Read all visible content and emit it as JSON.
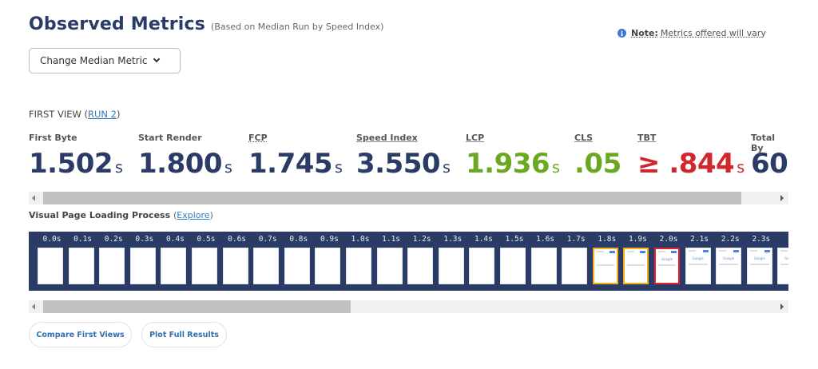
{
  "header": {
    "title": "Observed Metrics",
    "subtitle": "(Based on Median Run by Speed Index)",
    "note_label": "Note:",
    "note_text": "Metrics offered will vary",
    "note_icon": "info-icon",
    "median_button_label": "Change Median Metric"
  },
  "first_view": {
    "prefix": "FIRST VIEW (",
    "run_link": "RUN 2",
    "suffix": ")"
  },
  "metrics": [
    {
      "label": "First Byte",
      "value": "1.502",
      "unit": "s",
      "color": "#2a3c66"
    },
    {
      "label": "Start Render",
      "value": "1.800",
      "unit": "s",
      "color": "#2a3c66"
    },
    {
      "label": "FCP",
      "value": "1.745",
      "unit": "s",
      "color": "#2a3c66"
    },
    {
      "label": "Speed Index",
      "value": "3.550",
      "unit": "s",
      "color": "#2a3c66"
    },
    {
      "label": "LCP",
      "value": "1.936",
      "unit": "s",
      "color": "#6aa820"
    },
    {
      "label": "CLS",
      "value": ".05",
      "unit": "",
      "color": "#6aa820"
    },
    {
      "label": "TBT",
      "value": "≥ .844",
      "unit": "s",
      "color": "#d1262b"
    },
    {
      "label": "Total By",
      "value": "60",
      "unit": "",
      "color": "#2a3c66"
    }
  ],
  "visual_progress": {
    "title": "Visual Page Loading Process",
    "link": "Explore",
    "frames": [
      {
        "time": "0.0s",
        "state": "blank"
      },
      {
        "time": "0.1s",
        "state": "blank"
      },
      {
        "time": "0.2s",
        "state": "blank"
      },
      {
        "time": "0.3s",
        "state": "blank"
      },
      {
        "time": "0.4s",
        "state": "blank"
      },
      {
        "time": "0.5s",
        "state": "blank"
      },
      {
        "time": "0.6s",
        "state": "blank"
      },
      {
        "time": "0.7s",
        "state": "blank"
      },
      {
        "time": "0.8s",
        "state": "blank"
      },
      {
        "time": "0.9s",
        "state": "blank"
      },
      {
        "time": "1.0s",
        "state": "blank"
      },
      {
        "time": "1.1s",
        "state": "blank"
      },
      {
        "time": "1.2s",
        "state": "blank"
      },
      {
        "time": "1.3s",
        "state": "blank"
      },
      {
        "time": "1.4s",
        "state": "blank"
      },
      {
        "time": "1.5s",
        "state": "blank"
      },
      {
        "time": "1.6s",
        "state": "blank"
      },
      {
        "time": "1.7s",
        "state": "blank"
      },
      {
        "time": "1.8s",
        "state": "partial-changed"
      },
      {
        "time": "1.9s",
        "state": "partial-changed"
      },
      {
        "time": "2.0s",
        "state": "lcp"
      },
      {
        "time": "2.1s",
        "state": "loaded"
      },
      {
        "time": "2.2s",
        "state": "loaded"
      },
      {
        "time": "2.3s",
        "state": "loaded"
      },
      {
        "time": "2",
        "state": "loaded"
      }
    ],
    "logo_text": "Google"
  },
  "buttons": {
    "compare": "Compare First Views",
    "plot": "Plot Full Results"
  }
}
